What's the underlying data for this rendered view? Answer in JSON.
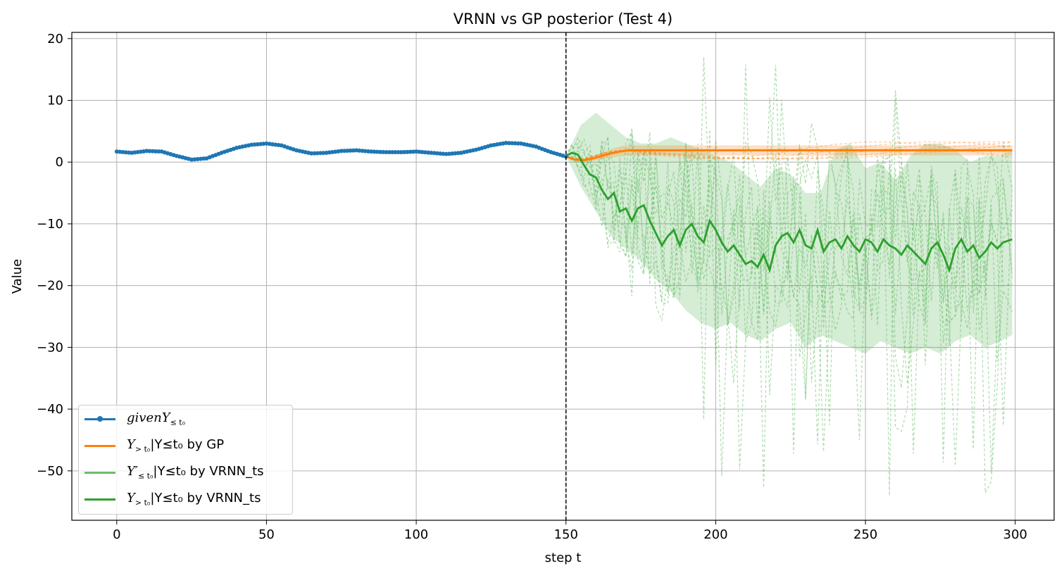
{
  "chart_data": {
    "type": "line",
    "title": "VRNN vs GP posterior (Test 4)",
    "xlabel": "step t",
    "ylabel": "Value",
    "xlim": [
      -15,
      313
    ],
    "ylim": [
      -58,
      21
    ],
    "xticks": [
      0,
      50,
      100,
      150,
      200,
      250,
      300
    ],
    "yticks": [
      20,
      10,
      0,
      -10,
      -20,
      -30,
      -40,
      -50
    ],
    "grid": true,
    "legend_position": "lower-left",
    "vline_x": 150,
    "colors": {
      "given": "#1f77b4",
      "gp": "#ff7f0e",
      "vrnn_samples": "#6abf69",
      "vrnn_mean": "#2ca02c"
    },
    "series": [
      {
        "name": "givenY_{≤t0}",
        "legend": {
          "main": "given",
          "main_italic": true,
          "sym": "Y",
          "sub": "≤ t₀",
          "rest": ""
        },
        "x": [
          0,
          5,
          10,
          15,
          20,
          25,
          30,
          35,
          40,
          45,
          50,
          55,
          60,
          65,
          70,
          75,
          80,
          85,
          90,
          95,
          100,
          105,
          110,
          115,
          120,
          125,
          130,
          135,
          140,
          145,
          150
        ],
        "y": [
          1.7,
          1.5,
          1.8,
          1.7,
          1.0,
          0.4,
          0.6,
          1.5,
          2.3,
          2.8,
          3.0,
          2.7,
          1.9,
          1.4,
          1.5,
          1.8,
          1.9,
          1.7,
          1.6,
          1.6,
          1.7,
          1.5,
          1.3,
          1.5,
          2.0,
          2.7,
          3.1,
          3.0,
          2.5,
          1.6,
          0.9
        ]
      },
      {
        "name": "Y_{>t0}|Y_{≤t0} by GP",
        "legend": {
          "main": "",
          "main_italic": false,
          "sym": "Y",
          "sub": "> t₀",
          "rest": "|Y≤t₀ by GP"
        },
        "x": [
          150,
          153,
          156,
          159,
          162,
          165,
          168,
          171,
          175,
          180,
          190,
          200,
          210,
          220,
          230,
          240,
          250,
          260,
          270,
          280,
          290,
          299
        ],
        "y": [
          0.9,
          0.4,
          0.3,
          0.6,
          1.0,
          1.4,
          1.7,
          1.9,
          1.9,
          1.9,
          1.9,
          1.9,
          1.9,
          1.9,
          1.9,
          1.9,
          1.9,
          1.9,
          1.9,
          1.9,
          1.9,
          1.9
        ],
        "band": {
          "lower_offset": -0.8,
          "upper_offset": 0.8
        }
      },
      {
        "name": "Y'_{≤t0}|Y_{≤t0} by VRNN_ts",
        "legend": {
          "main": "",
          "main_italic": false,
          "sym": "Y′",
          "sub": "≤ t₀",
          "rest": "|Y≤t₀ by VRNN_ts"
        },
        "style": "dashed-samples",
        "band_x": [
          150,
          155,
          160,
          165,
          170,
          175,
          180,
          185,
          190,
          195,
          200,
          205,
          210,
          215,
          220,
          225,
          230,
          235,
          240,
          245,
          250,
          255,
          260,
          265,
          270,
          275,
          280,
          285,
          290,
          295,
          299
        ],
        "band_upper": [
          1,
          6,
          8,
          6,
          4,
          3,
          3,
          4,
          3,
          2,
          1,
          0,
          -2,
          -4,
          -1,
          -2,
          -5,
          -5,
          2,
          3,
          -1,
          0,
          -3,
          1,
          3,
          3,
          2,
          0,
          1,
          1,
          2
        ],
        "band_lower": [
          1,
          -4,
          -8,
          -12,
          -14,
          -16,
          -19,
          -21,
          -24,
          -26,
          -27,
          -26,
          -28,
          -29,
          -27,
          -26,
          -30,
          -28,
          -29,
          -30,
          -31,
          -29,
          -30,
          -31,
          -30,
          -31,
          -29,
          -28,
          -30,
          -29,
          -28
        ]
      },
      {
        "name": "Y_{>t0}|Y_{≤t0} by VRNN_ts",
        "legend": {
          "main": "",
          "main_italic": false,
          "sym": "Y",
          "sub": "> t₀",
          "rest": "|Y≤t₀ by VRNN_ts"
        },
        "x": [
          150,
          152,
          154,
          156,
          158,
          160,
          162,
          164,
          166,
          168,
          170,
          172,
          174,
          176,
          178,
          180,
          182,
          184,
          186,
          188,
          190,
          192,
          194,
          196,
          198,
          200,
          202,
          204,
          206,
          208,
          210,
          212,
          214,
          216,
          218,
          220,
          222,
          224,
          226,
          228,
          230,
          232,
          234,
          236,
          238,
          240,
          242,
          244,
          246,
          248,
          250,
          252,
          254,
          256,
          258,
          260,
          262,
          264,
          266,
          268,
          270,
          272,
          274,
          276,
          278,
          280,
          282,
          284,
          286,
          288,
          290,
          292,
          294,
          296,
          299
        ],
        "y": [
          1.0,
          1.5,
          1.2,
          -0.5,
          -2.0,
          -2.5,
          -4.5,
          -6.0,
          -5.0,
          -8.0,
          -7.5,
          -9.5,
          -7.5,
          -7.0,
          -9.5,
          -11.5,
          -13.5,
          -12.0,
          -11.0,
          -13.5,
          -11.0,
          -10.0,
          -12.0,
          -13.0,
          -9.5,
          -11.0,
          -13.0,
          -14.5,
          -13.5,
          -15.0,
          -16.5,
          -16.0,
          -17.0,
          -15.0,
          -17.5,
          -13.5,
          -12.0,
          -11.5,
          -13.0,
          -11.0,
          -13.5,
          -14.0,
          -11.0,
          -14.5,
          -13.0,
          -12.5,
          -14.0,
          -12.0,
          -13.5,
          -14.5,
          -12.5,
          -13.0,
          -14.5,
          -12.5,
          -13.5,
          -14.0,
          -15.0,
          -13.5,
          -14.5,
          -15.5,
          -16.5,
          -14.0,
          -13.0,
          -15.0,
          -17.5,
          -14.0,
          -12.5,
          -14.5,
          -13.5,
          -15.5,
          -14.5,
          -13.0,
          -14.0,
          -13.0,
          -12.5
        ]
      }
    ]
  }
}
